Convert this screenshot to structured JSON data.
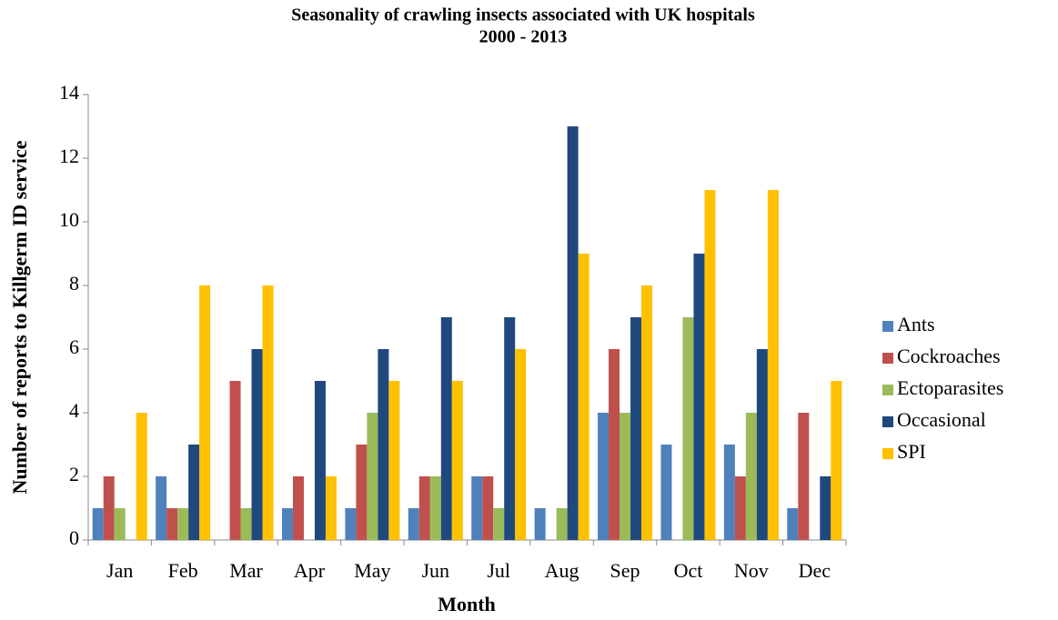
{
  "chart_data": {
    "type": "bar",
    "title": [
      "Seasonality of crawling insects associated with UK hospitals",
      "2000 - 2013"
    ],
    "xlabel": "Month",
    "ylabel": "Number of reports to Killgerm ID service",
    "categories": [
      "Jan",
      "Feb",
      "Mar",
      "Apr",
      "May",
      "Jun",
      "Jul",
      "Aug",
      "Sep",
      "Oct",
      "Nov",
      "Dec"
    ],
    "series": [
      {
        "name": "Ants",
        "color": "#4f81bd",
        "values": [
          1,
          2,
          0,
          1,
          1,
          1,
          2,
          1,
          4,
          3,
          3,
          1
        ]
      },
      {
        "name": "Cockroaches",
        "color": "#c0504d",
        "values": [
          2,
          1,
          5,
          2,
          3,
          2,
          2,
          0,
          6,
          0,
          2,
          4
        ]
      },
      {
        "name": "Ectoparasites",
        "color": "#9bbb59",
        "values": [
          1,
          1,
          1,
          0,
          4,
          2,
          1,
          1,
          4,
          7,
          4,
          0
        ]
      },
      {
        "name": "Occasional",
        "color": "#1f497d",
        "values": [
          0,
          3,
          6,
          5,
          6,
          7,
          7,
          13,
          7,
          9,
          6,
          2
        ]
      },
      {
        "name": "SPI",
        "color": "#ffc000",
        "values": [
          4,
          8,
          8,
          2,
          5,
          5,
          6,
          9,
          8,
          11,
          11,
          5
        ]
      }
    ],
    "ylim": [
      0,
      14
    ],
    "yticks": [
      0,
      2,
      4,
      6,
      8,
      10,
      12,
      14
    ],
    "legend": "right"
  }
}
